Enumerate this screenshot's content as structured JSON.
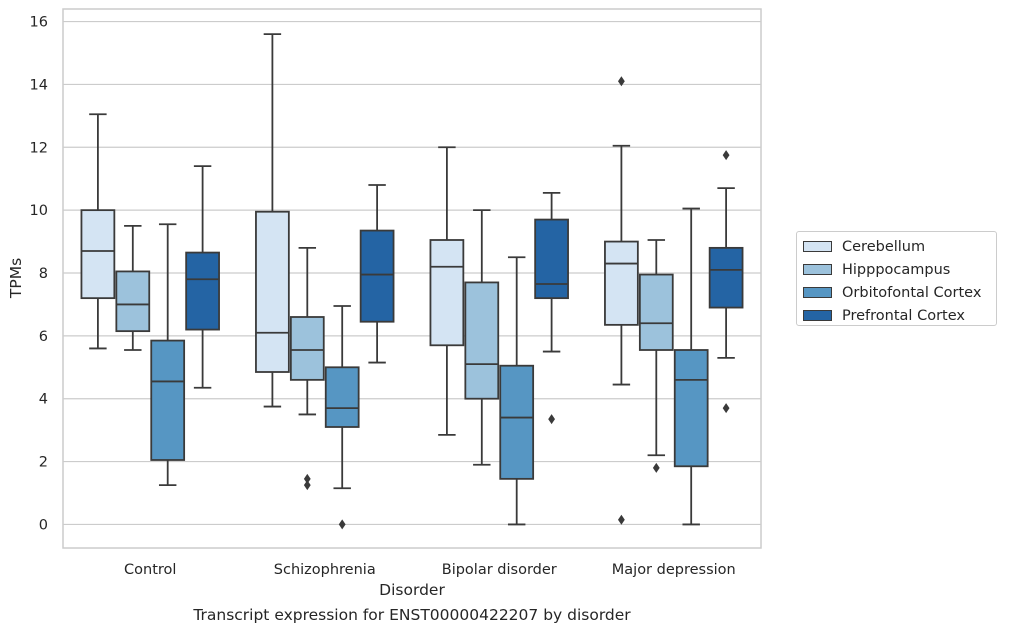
{
  "chart_data": {
    "type": "box",
    "caption": "Transcript expression for ENST00000422207 by disorder",
    "xlabel": "Disorder",
    "ylabel": "TPMs",
    "ylim": [
      -0.75,
      16.4
    ],
    "yticks": [
      0,
      2,
      4,
      6,
      8,
      10,
      12,
      14,
      16
    ],
    "grid": "horizontal",
    "legend_position": "right",
    "categories": [
      "Control",
      "Schizophrenia",
      "Bipolar disorder",
      "Major depression"
    ],
    "series": [
      {
        "name": "Cerebellum",
        "color": "#d4e4f3",
        "boxes": [
          {
            "whisker_low": 5.6,
            "q1": 7.2,
            "median": 8.7,
            "q3": 10.0,
            "whisker_high": 13.05,
            "outliers": []
          },
          {
            "whisker_low": 3.75,
            "q1": 4.85,
            "median": 6.1,
            "q3": 9.95,
            "whisker_high": 15.6,
            "outliers": []
          },
          {
            "whisker_low": 2.85,
            "q1": 5.7,
            "median": 8.2,
            "q3": 9.05,
            "whisker_high": 12.0,
            "outliers": []
          },
          {
            "whisker_low": 4.45,
            "q1": 6.35,
            "median": 8.3,
            "q3": 9.0,
            "whisker_high": 12.05,
            "outliers": [
              0.15,
              14.1
            ]
          }
        ]
      },
      {
        "name": "Hipppocampus",
        "color": "#9cc2dc",
        "boxes": [
          {
            "whisker_low": 5.55,
            "q1": 6.15,
            "median": 7.0,
            "q3": 8.05,
            "whisker_high": 9.5,
            "outliers": []
          },
          {
            "whisker_low": 3.5,
            "q1": 4.6,
            "median": 5.55,
            "q3": 6.6,
            "whisker_high": 8.8,
            "outliers": [
              1.25,
              1.45
            ]
          },
          {
            "whisker_low": 1.9,
            "q1": 4.0,
            "median": 5.1,
            "q3": 7.7,
            "whisker_high": 10.0,
            "outliers": []
          },
          {
            "whisker_low": 2.2,
            "q1": 5.55,
            "median": 6.4,
            "q3": 7.95,
            "whisker_high": 9.05,
            "outliers": [
              1.8
            ]
          }
        ]
      },
      {
        "name": "Orbitofontal Cortex",
        "color": "#5696c3",
        "boxes": [
          {
            "whisker_low": 1.25,
            "q1": 2.05,
            "median": 4.55,
            "q3": 5.85,
            "whisker_high": 9.55,
            "outliers": []
          },
          {
            "whisker_low": 1.15,
            "q1": 3.1,
            "median": 3.7,
            "q3": 5.0,
            "whisker_high": 6.95,
            "outliers": [
              0.0
            ]
          },
          {
            "whisker_low": 0.0,
            "q1": 1.45,
            "median": 3.4,
            "q3": 5.05,
            "whisker_high": 8.5,
            "outliers": []
          },
          {
            "whisker_low": 0.0,
            "q1": 1.85,
            "median": 4.6,
            "q3": 5.55,
            "whisker_high": 10.05,
            "outliers": []
          }
        ]
      },
      {
        "name": "Prefrontal Cortex",
        "color": "#2464a4",
        "boxes": [
          {
            "whisker_low": 4.35,
            "q1": 6.2,
            "median": 7.8,
            "q3": 8.65,
            "whisker_high": 11.4,
            "outliers": []
          },
          {
            "whisker_low": 5.15,
            "q1": 6.45,
            "median": 7.95,
            "q3": 9.35,
            "whisker_high": 10.8,
            "outliers": []
          },
          {
            "whisker_low": 5.5,
            "q1": 7.2,
            "median": 7.65,
            "q3": 9.7,
            "whisker_high": 10.55,
            "outliers": [
              3.35
            ]
          },
          {
            "whisker_low": 5.3,
            "q1": 6.9,
            "median": 8.1,
            "q3": 8.8,
            "whisker_high": 10.7,
            "outliers": [
              3.7,
              11.75
            ]
          }
        ]
      }
    ]
  }
}
